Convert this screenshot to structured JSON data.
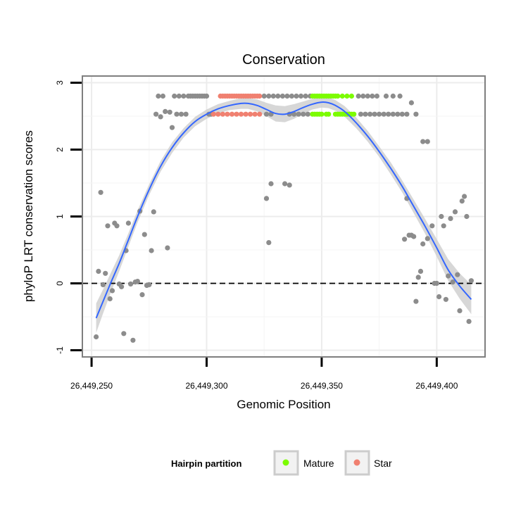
{
  "chart_data": {
    "type": "scatter",
    "title": "Conservation",
    "xlabel": "Genomic Position",
    "ylabel": "phyloP LRT conservation scores",
    "xlim": [
      26449246,
      26449421
    ],
    "ylim": [
      -1.1,
      3.1
    ],
    "x_ticks": [
      26449250,
      26449300,
      26449350,
      26449400
    ],
    "x_tick_labels": [
      "26,449,250",
      "26,449,300",
      "26,449,350",
      "26,449,400"
    ],
    "y_ticks": [
      -1,
      0,
      1,
      2,
      3
    ],
    "y_tick_labels": [
      "-1",
      "0",
      "1",
      "2",
      "3"
    ],
    "reference_line": {
      "y": 0,
      "style": "dashed"
    },
    "legend": {
      "title": "Hairpin partition",
      "position": "bottom",
      "entries": [
        {
          "label": "Mature",
          "color": "#7CFC00"
        },
        {
          "label": "Star",
          "color": "#F08070"
        }
      ]
    },
    "colors": {
      "other": "#8c8c8c",
      "Mature": "#7CFC00",
      "Star": "#F08070",
      "smooth": "#3366FF",
      "band": "#d0d0d0",
      "panel_border": "#7f7f7f",
      "grid": "#ececec"
    },
    "series": [
      {
        "name": "Other",
        "points": [
          [
            26449252,
            -0.8
          ],
          [
            26449253,
            0.18
          ],
          [
            26449254,
            1.36
          ],
          [
            26449255,
            -0.02
          ],
          [
            26449256,
            0.15
          ],
          [
            26449257,
            0.86
          ],
          [
            26449258,
            -0.23
          ],
          [
            26449259,
            -0.11
          ],
          [
            26449260,
            0.9
          ],
          [
            26449261,
            0.86
          ],
          [
            26449262,
            -0.01
          ],
          [
            26449263,
            -0.05
          ],
          [
            26449264,
            -0.75
          ],
          [
            26449265,
            0.49
          ],
          [
            26449266,
            0.9
          ],
          [
            26449267,
            -0.01
          ],
          [
            26449268,
            -0.85
          ],
          [
            26449269,
            0.02
          ],
          [
            26449270,
            0.03
          ],
          [
            26449271,
            1.08
          ],
          [
            26449272,
            -0.17
          ],
          [
            26449273,
            0.73
          ],
          [
            26449274,
            -0.03
          ],
          [
            26449275,
            -0.02
          ],
          [
            26449276,
            0.49
          ],
          [
            26449277,
            1.07
          ],
          [
            26449278,
            2.53
          ],
          [
            26449279,
            2.8
          ],
          [
            26449280,
            2.49
          ],
          [
            26449281,
            2.8
          ],
          [
            26449282,
            2.57
          ],
          [
            26449284,
            2.56
          ],
          [
            26449285,
            2.33
          ],
          [
            26449286,
            2.8
          ],
          [
            26449287,
            2.53
          ],
          [
            26449288,
            2.8
          ],
          [
            26449289,
            2.53
          ],
          [
            26449290,
            2.8
          ],
          [
            26449291,
            2.53
          ],
          [
            26449292,
            2.8
          ],
          [
            26449293,
            2.8
          ],
          [
            26449294,
            2.8
          ],
          [
            26449295,
            2.8
          ],
          [
            26449296,
            2.8
          ],
          [
            26449297,
            2.8
          ],
          [
            26449298,
            2.8
          ],
          [
            26449299,
            2.8
          ],
          [
            26449300,
            2.8
          ],
          [
            26449283,
            0.53
          ],
          [
            26449301,
            2.53
          ],
          [
            26449302,
            2.53
          ],
          [
            26449325,
            2.8
          ],
          [
            26449327,
            2.8
          ],
          [
            26449329,
            2.8
          ],
          [
            26449331,
            2.8
          ],
          [
            26449333,
            2.8
          ],
          [
            26449335,
            2.8
          ],
          [
            26449337,
            2.8
          ],
          [
            26449339,
            2.8
          ],
          [
            26449341,
            2.8
          ],
          [
            26449343,
            2.8
          ],
          [
            26449345,
            2.8
          ],
          [
            26449326,
            2.53
          ],
          [
            26449328,
            2.53
          ],
          [
            26449336,
            2.53
          ],
          [
            26449338,
            2.53
          ],
          [
            26449340,
            2.53
          ],
          [
            26449342,
            2.53
          ],
          [
            26449344,
            2.53
          ],
          [
            26449326,
            1.27
          ],
          [
            26449328,
            1.49
          ],
          [
            26449327,
            0.61
          ],
          [
            26449334,
            1.49
          ],
          [
            26449336,
            1.47
          ],
          [
            26449366,
            2.8
          ],
          [
            26449368,
            2.8
          ],
          [
            26449370,
            2.8
          ],
          [
            26449372,
            2.8
          ],
          [
            26449374,
            2.8
          ],
          [
            26449378,
            2.8
          ],
          [
            26449381,
            2.8
          ],
          [
            26449384,
            2.8
          ],
          [
            26449367,
            2.53
          ],
          [
            26449369,
            2.53
          ],
          [
            26449371,
            2.53
          ],
          [
            26449373,
            2.53
          ],
          [
            26449375,
            2.53
          ],
          [
            26449377,
            2.53
          ],
          [
            26449379,
            2.53
          ],
          [
            26449381,
            2.53
          ],
          [
            26449383,
            2.53
          ],
          [
            26449385,
            2.53
          ],
          [
            26449387,
            2.53
          ],
          [
            26449391,
            2.53
          ],
          [
            26449389,
            2.7
          ],
          [
            26449394,
            2.12
          ],
          [
            26449396,
            2.12
          ],
          [
            26449386,
            0.66
          ],
          [
            26449387,
            1.27
          ],
          [
            26449388,
            0.72
          ],
          [
            26449389,
            0.72
          ],
          [
            26449390,
            0.7
          ],
          [
            26449391,
            -0.27
          ],
          [
            26449392,
            0.09
          ],
          [
            26449393,
            0.18
          ],
          [
            26449394,
            0.59
          ],
          [
            26449396,
            0.67
          ],
          [
            26449398,
            0.86
          ],
          [
            26449399,
            0.0
          ],
          [
            26449400,
            0.0
          ],
          [
            26449401,
            -0.2
          ],
          [
            26449402,
            1.0
          ],
          [
            26449403,
            0.86
          ],
          [
            26449404,
            -0.24
          ],
          [
            26449405,
            0.11
          ],
          [
            26449406,
            0.97
          ],
          [
            26449407,
            0.02
          ],
          [
            26449408,
            1.07
          ],
          [
            26449409,
            0.13
          ],
          [
            26449410,
            -0.41
          ],
          [
            26449411,
            1.23
          ],
          [
            26449412,
            1.3
          ],
          [
            26449413,
            1.0
          ],
          [
            26449414,
            -0.57
          ],
          [
            26449415,
            0.04
          ]
        ]
      },
      {
        "name": "Star",
        "points": [
          [
            26449306,
            2.8
          ],
          [
            26449307,
            2.8
          ],
          [
            26449308,
            2.8
          ],
          [
            26449309,
            2.8
          ],
          [
            26449310,
            2.8
          ],
          [
            26449311,
            2.8
          ],
          [
            26449312,
            2.8
          ],
          [
            26449313,
            2.8
          ],
          [
            26449314,
            2.8
          ],
          [
            26449315,
            2.8
          ],
          [
            26449316,
            2.8
          ],
          [
            26449317,
            2.8
          ],
          [
            26449318,
            2.8
          ],
          [
            26449319,
            2.8
          ],
          [
            26449320,
            2.8
          ],
          [
            26449321,
            2.8
          ],
          [
            26449322,
            2.8
          ],
          [
            26449323,
            2.8
          ],
          [
            26449303,
            2.53
          ],
          [
            26449305,
            2.53
          ],
          [
            26449307,
            2.53
          ],
          [
            26449309,
            2.53
          ],
          [
            26449311,
            2.53
          ],
          [
            26449313,
            2.53
          ],
          [
            26449315,
            2.53
          ],
          [
            26449317,
            2.53
          ],
          [
            26449319,
            2.53
          ],
          [
            26449321,
            2.53
          ],
          [
            26449323,
            2.53
          ]
        ]
      },
      {
        "name": "Mature",
        "points": [
          [
            26449346,
            2.8
          ],
          [
            26449347,
            2.8
          ],
          [
            26449348,
            2.8
          ],
          [
            26449349,
            2.8
          ],
          [
            26449350,
            2.8
          ],
          [
            26449351,
            2.8
          ],
          [
            26449352,
            2.8
          ],
          [
            26449353,
            2.8
          ],
          [
            26449354,
            2.8
          ],
          [
            26449355,
            2.8
          ],
          [
            26449356,
            2.8
          ],
          [
            26449357,
            2.8
          ],
          [
            26449359,
            2.8
          ],
          [
            26449361,
            2.8
          ],
          [
            26449363,
            2.8
          ],
          [
            26449346,
            2.53
          ],
          [
            26449347,
            2.53
          ],
          [
            26449348,
            2.53
          ],
          [
            26449349,
            2.53
          ],
          [
            26449350,
            2.53
          ],
          [
            26449352,
            2.53
          ],
          [
            26449353,
            2.53
          ],
          [
            26449356,
            2.53
          ],
          [
            26449357,
            2.53
          ],
          [
            26449358,
            2.53
          ],
          [
            26449359,
            2.53
          ],
          [
            26449360,
            2.53
          ],
          [
            26449361,
            2.53
          ],
          [
            26449362,
            2.53
          ],
          [
            26449363,
            2.53
          ],
          [
            26449364,
            2.53
          ]
        ]
      }
    ],
    "smooth_fit": {
      "x": [
        26449252,
        26449255,
        26449258,
        26449262,
        26449266,
        26449270,
        26449275,
        26449280,
        26449285,
        26449290,
        26449295,
        26449300,
        26449305,
        26449310,
        26449315,
        26449318,
        26449322,
        26449326,
        26449330,
        26449334,
        26449338,
        26449342,
        26449346,
        26449350,
        26449353,
        26449356,
        26449360,
        26449365,
        26449370,
        26449375,
        26449380,
        26449385,
        26449390,
        26449395,
        26449400,
        26449405,
        26449410,
        26449415
      ],
      "y": [
        -0.52,
        -0.27,
        -0.02,
        0.3,
        0.65,
        1.0,
        1.4,
        1.75,
        2.03,
        2.25,
        2.42,
        2.53,
        2.61,
        2.66,
        2.69,
        2.69,
        2.66,
        2.6,
        2.54,
        2.53,
        2.57,
        2.63,
        2.68,
        2.71,
        2.7,
        2.66,
        2.57,
        2.4,
        2.2,
        1.97,
        1.72,
        1.45,
        1.15,
        0.85,
        0.53,
        0.2,
        -0.04,
        -0.24
      ],
      "se": [
        0.22,
        0.18,
        0.15,
        0.12,
        0.1,
        0.09,
        0.08,
        0.08,
        0.08,
        0.07,
        0.07,
        0.07,
        0.07,
        0.07,
        0.08,
        0.08,
        0.09,
        0.1,
        0.12,
        0.12,
        0.11,
        0.09,
        0.08,
        0.08,
        0.08,
        0.08,
        0.08,
        0.08,
        0.08,
        0.08,
        0.09,
        0.09,
        0.1,
        0.11,
        0.13,
        0.16,
        0.19,
        0.22
      ]
    }
  }
}
